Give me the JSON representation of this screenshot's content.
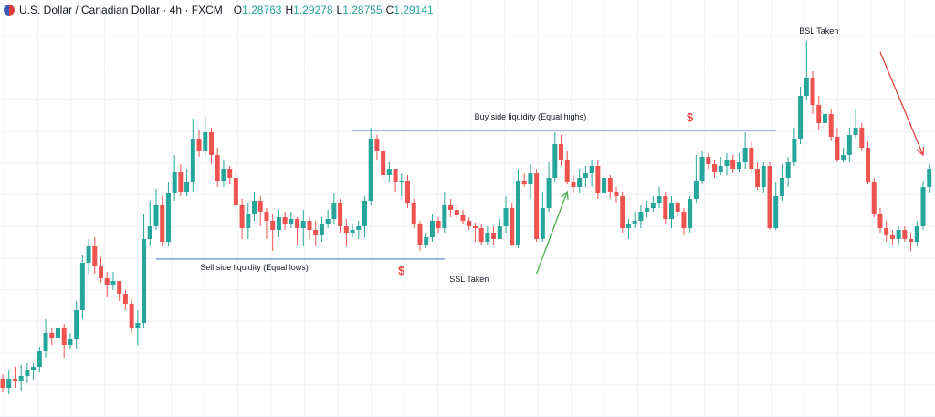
{
  "header": {
    "symbol": "U.S. Dollar / Canadian Dollar · 4h · FXCM",
    "o_label": "O",
    "o_value": "1.28763",
    "h_label": "H",
    "h_value": "1.29278",
    "l_label": "L",
    "l_value": "1.28755",
    "c_label": "C",
    "c_value": "1.29141"
  },
  "colors": {
    "up": "#26a69a",
    "down": "#ef5350",
    "level": "#4a72d9",
    "dollar": "#e8433f",
    "green_arrow": "#4caf50",
    "red_arrow": "#e8433f",
    "grid": "#f0f3fa"
  },
  "chart_data": {
    "type": "candlestick",
    "series": [
      {
        "ohlc": [
          [
            0,
            415,
            425,
            410,
            430
          ],
          [
            1,
            425,
            415,
            405,
            432
          ],
          [
            2,
            415,
            418,
            402,
            425
          ],
          [
            3,
            418,
            412,
            400,
            428
          ],
          [
            4,
            412,
            405,
            398,
            420
          ],
          [
            5,
            405,
            402,
            398,
            416
          ],
          [
            6,
            402,
            385,
            380,
            408
          ],
          [
            7,
            385,
            365,
            350,
            392
          ],
          [
            8,
            365,
            370,
            360,
            378
          ],
          [
            9,
            370,
            360,
            352,
            375
          ],
          [
            10,
            360,
            378,
            355,
            392
          ],
          [
            11,
            378,
            372,
            365,
            382
          ],
          [
            12,
            372,
            340,
            330,
            382
          ],
          [
            13,
            340,
            288,
            280,
            350
          ],
          [
            14,
            288,
            270,
            262,
            300
          ],
          [
            15,
            270,
            292,
            260,
            300
          ],
          [
            16,
            292,
            305,
            282,
            310
          ],
          [
            17,
            305,
            312,
            298,
            325
          ],
          [
            18,
            312,
            308,
            298,
            318
          ],
          [
            19,
            308,
            322,
            310,
            330
          ],
          [
            20,
            322,
            333,
            318,
            340
          ],
          [
            21,
            333,
            360,
            328,
            365
          ],
          [
            22,
            360,
            354,
            340,
            378
          ],
          [
            23,
            354,
            262,
            235,
            360
          ],
          [
            24,
            262,
            248,
            220,
            270
          ],
          [
            25,
            248,
            225,
            207,
            252
          ],
          [
            26,
            225,
            265,
            215,
            270
          ],
          [
            27,
            265,
            212,
            200,
            270
          ],
          [
            28,
            212,
            188,
            170,
            220
          ],
          [
            29,
            188,
            210,
            180,
            215
          ],
          [
            30,
            210,
            200,
            185,
            215
          ],
          [
            31,
            200,
            152,
            130,
            210
          ],
          [
            32,
            152,
            165,
            142,
            172
          ],
          [
            33,
            165,
            145,
            128,
            172
          ],
          [
            34,
            145,
            170,
            140,
            180
          ],
          [
            35,
            170,
            198,
            162,
            205
          ],
          [
            36,
            198,
            185,
            175,
            205
          ],
          [
            37,
            185,
            195,
            182,
            202
          ],
          [
            38,
            195,
            225,
            188,
            232
          ],
          [
            39,
            225,
            250,
            218,
            262
          ],
          [
            40,
            250,
            235,
            222,
            262
          ],
          [
            41,
            235,
            220,
            210,
            242
          ],
          [
            42,
            220,
            232,
            215,
            248
          ],
          [
            43,
            232,
            242,
            228,
            262
          ],
          [
            44,
            242,
            252,
            235,
            275
          ],
          [
            45,
            252,
            238,
            230,
            260
          ],
          [
            46,
            238,
            245,
            232,
            252
          ],
          [
            47,
            245,
            240,
            232,
            250
          ],
          [
            48,
            240,
            250,
            238,
            268
          ],
          [
            49,
            250,
            242,
            230,
            270
          ],
          [
            50,
            242,
            252,
            238,
            262
          ],
          [
            51,
            252,
            258,
            242,
            270
          ],
          [
            52,
            258,
            245,
            238,
            265
          ],
          [
            53,
            245,
            240,
            230,
            250
          ],
          [
            54,
            240,
            222,
            212,
            245
          ],
          [
            55,
            222,
            248,
            218,
            255
          ],
          [
            56,
            248,
            255,
            240,
            270
          ],
          [
            57,
            255,
            252,
            245,
            260
          ],
          [
            58,
            252,
            248,
            242,
            262
          ],
          [
            59,
            248,
            220,
            215,
            260
          ],
          [
            60,
            220,
            152,
            140,
            225
          ],
          [
            61,
            152,
            165,
            148,
            175
          ],
          [
            62,
            165,
            192,
            158,
            198
          ],
          [
            63,
            192,
            185,
            178,
            200
          ],
          [
            64,
            185,
            200,
            185,
            210
          ],
          [
            65,
            200,
            198,
            190,
            215
          ],
          [
            66,
            198,
            222,
            192,
            228
          ],
          [
            67,
            222,
            245,
            218,
            250
          ],
          [
            68,
            245,
            268,
            242,
            275
          ],
          [
            69,
            268,
            260,
            255,
            272
          ],
          [
            70,
            260,
            242,
            235,
            265
          ],
          [
            71,
            242,
            250,
            238,
            255
          ],
          [
            72,
            250,
            225,
            210,
            255
          ],
          [
            73,
            225,
            230,
            218,
            238
          ],
          [
            74,
            230,
            236,
            225,
            240
          ],
          [
            75,
            236,
            242,
            230,
            245
          ],
          [
            76,
            242,
            248,
            238,
            252
          ],
          [
            77,
            248,
            250,
            244,
            265
          ],
          [
            78,
            250,
            265,
            245,
            268
          ],
          [
            79,
            265,
            255,
            248,
            268
          ],
          [
            80,
            255,
            262,
            248,
            268
          ],
          [
            81,
            262,
            248,
            240,
            262
          ],
          [
            82,
            248,
            228,
            215,
            255
          ],
          [
            83,
            228,
            268,
            222,
            270
          ],
          [
            84,
            268,
            198,
            185,
            272
          ],
          [
            85,
            198,
            202,
            190,
            205
          ],
          [
            86,
            202,
            190,
            180,
            218
          ],
          [
            87,
            190,
            262,
            185,
            265
          ],
          [
            88,
            262,
            228,
            210,
            265
          ],
          [
            89,
            228,
            195,
            178,
            232
          ],
          [
            90,
            195,
            158,
            145,
            200
          ],
          [
            91,
            158,
            175,
            148,
            182
          ],
          [
            92,
            175,
            200,
            165,
            202
          ],
          [
            93,
            200,
            205,
            192,
            212
          ],
          [
            94,
            205,
            195,
            185,
            212
          ],
          [
            95,
            195,
            190,
            182,
            205
          ],
          [
            96,
            190,
            182,
            175,
            205
          ],
          [
            97,
            182,
            212,
            175,
            218
          ],
          [
            98,
            212,
            195,
            185,
            218
          ],
          [
            99,
            195,
            210,
            192,
            218
          ],
          [
            100,
            210,
            215,
            205,
            222
          ],
          [
            101,
            215,
            250,
            210,
            255
          ],
          [
            102,
            250,
            245,
            240,
            262
          ],
          [
            103,
            245,
            242,
            232,
            250
          ],
          [
            104,
            242,
            232,
            225,
            250
          ],
          [
            105,
            232,
            228,
            220,
            238
          ],
          [
            106,
            228,
            222,
            215,
            232
          ],
          [
            107,
            222,
            215,
            205,
            228
          ],
          [
            108,
            215,
            240,
            210,
            245
          ],
          [
            109,
            240,
            222,
            215,
            250
          ],
          [
            110,
            222,
            232,
            220,
            238
          ],
          [
            111,
            232,
            250,
            228,
            258
          ],
          [
            112,
            250,
            218,
            215,
            255
          ],
          [
            113,
            218,
            198,
            170,
            222
          ],
          [
            114,
            198,
            172,
            165,
            202
          ],
          [
            115,
            172,
            180,
            168,
            185
          ],
          [
            116,
            180,
            188,
            175,
            195
          ],
          [
            117,
            188,
            182,
            172,
            192
          ],
          [
            118,
            182,
            175,
            168,
            192
          ],
          [
            119,
            175,
            185,
            170,
            190
          ],
          [
            120,
            185,
            178,
            168,
            188
          ],
          [
            121,
            178,
            162,
            145,
            185
          ],
          [
            122,
            162,
            185,
            155,
            190
          ],
          [
            123,
            185,
            205,
            178,
            208
          ],
          [
            124,
            205,
            182,
            178,
            212
          ],
          [
            125,
            182,
            250,
            178,
            252
          ],
          [
            126,
            250,
            215,
            200,
            252
          ],
          [
            127,
            215,
            195,
            180,
            220
          ],
          [
            128,
            195,
            178,
            172,
            205
          ],
          [
            129,
            178,
            152,
            140,
            182
          ],
          [
            130,
            152,
            105,
            95,
            158
          ],
          [
            131,
            105,
            85,
            45,
            110
          ],
          [
            132,
            85,
            115,
            78,
            125
          ],
          [
            133,
            115,
            135,
            105,
            142
          ],
          [
            134,
            135,
            125,
            110,
            145
          ],
          [
            135,
            125,
            150,
            120,
            155
          ],
          [
            136,
            150,
            175,
            140,
            178
          ],
          [
            137,
            175,
            170,
            162,
            178
          ],
          [
            138,
            170,
            148,
            140,
            178
          ],
          [
            139,
            148,
            140,
            120,
            152
          ],
          [
            140,
            140,
            162,
            135,
            165
          ],
          [
            141,
            162,
            200,
            155,
            202
          ],
          [
            142,
            200,
            235,
            195,
            238
          ],
          [
            143,
            235,
            250,
            228,
            255
          ],
          [
            144,
            250,
            258,
            242,
            265
          ],
          [
            145,
            258,
            262,
            252,
            268
          ],
          [
            146,
            262,
            252,
            248,
            268
          ],
          [
            147,
            252,
            262,
            248,
            265
          ],
          [
            148,
            262,
            265,
            255,
            275
          ],
          [
            149,
            265,
            248,
            242,
            270
          ],
          [
            150,
            248,
            205,
            198,
            252
          ],
          [
            151,
            205,
            185,
            180,
            212
          ]
        ]
      }
    ],
    "annotations": [
      {
        "text": "BSL Taken"
      },
      {
        "text": "Buy side liquidity (Equal highs)"
      },
      {
        "text": "Sell side liquidity (Equal lows)"
      },
      {
        "text": "SSL Taken"
      },
      {
        "text": "$"
      },
      {
        "text": "$"
      }
    ],
    "xlabel": "",
    "ylabel": "",
    "grid": true,
    "legend": "none"
  }
}
